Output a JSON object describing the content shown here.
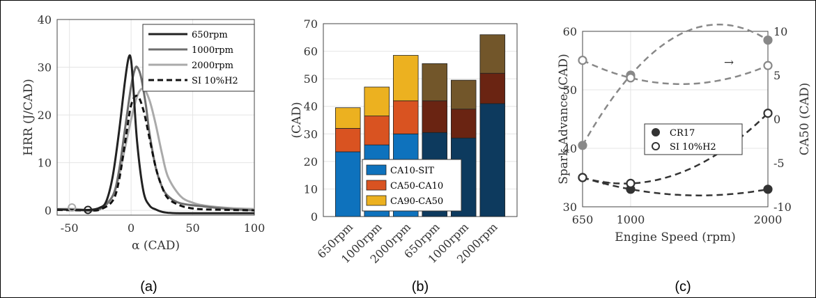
{
  "chart_data": [
    {
      "id": "a",
      "type": "line",
      "panel_label": "(a)",
      "xlabel": "α (CAD)",
      "ylabel": "HRR (J/CAD)",
      "xlim": [
        -60,
        100
      ],
      "ylim": [
        -1,
        40
      ],
      "xticks": [
        -50,
        0,
        50,
        100
      ],
      "yticks": [
        0,
        10,
        20,
        30,
        40
      ],
      "grid": true,
      "legend_position": "top-right",
      "series": [
        {
          "name": "650rpm",
          "color": "#222222",
          "dash": "",
          "x": [
            -60,
            -35,
            -25,
            -20,
            -15,
            -10,
            -5,
            -2,
            0,
            2,
            5,
            10,
            15,
            20,
            25,
            30,
            40,
            60,
            100
          ],
          "y": [
            0.2,
            0.1,
            0.6,
            2,
            7,
            16,
            27,
            32,
            31.5,
            25,
            14,
            4,
            1,
            0.2,
            -0.3,
            -0.5,
            -0.6,
            -0.6,
            -0.6
          ]
        },
        {
          "name": "1000rpm",
          "color": "#6e6e6e",
          "dash": "",
          "x": [
            -60,
            -35,
            -25,
            -15,
            -10,
            -5,
            0,
            3,
            5,
            8,
            12,
            15,
            20,
            25,
            30,
            40,
            60,
            80,
            100
          ],
          "y": [
            0.2,
            0,
            0.3,
            3,
            8,
            17,
            26,
            29.5,
            30,
            28,
            22,
            16,
            9,
            5,
            3,
            1.5,
            0.8,
            0.3,
            0
          ]
        },
        {
          "name": "2000rpm",
          "color": "#aaaaaa",
          "dash": "",
          "x": [
            -60,
            -45,
            -35,
            -25,
            -15,
            -10,
            -5,
            0,
            5,
            10,
            15,
            20,
            25,
            30,
            40,
            50,
            60,
            80,
            100
          ],
          "y": [
            0.3,
            0.3,
            0.1,
            0.5,
            3,
            7,
            13,
            19,
            24,
            25.5,
            23,
            18,
            12,
            7,
            3,
            1.6,
            1,
            0.5,
            0.3
          ]
        },
        {
          "name": "SI 10%H2",
          "color": "#111111",
          "dash": "8,5",
          "x": [
            -60,
            -35,
            -25,
            -15,
            -10,
            -5,
            0,
            5,
            10,
            15,
            20,
            25,
            30,
            40,
            50,
            60,
            80,
            100
          ],
          "y": [
            0.1,
            0,
            0.2,
            2,
            6,
            14,
            22,
            24,
            21,
            15,
            9,
            5,
            2.5,
            1,
            0.4,
            0.2,
            0.1,
            0
          ]
        }
      ],
      "markers": [
        {
          "x": -48,
          "y": 0.6,
          "color": "#aaaaaa"
        },
        {
          "x": -35,
          "y": 0.1,
          "color": "#222222"
        }
      ]
    },
    {
      "id": "b",
      "type": "bar",
      "panel_label": "(b)",
      "ylabel": "(CAD)",
      "ylim": [
        0,
        70
      ],
      "yticks": [
        0,
        10,
        20,
        30,
        40,
        50,
        60,
        70
      ],
      "grid": true,
      "legend_position": "bottom-center",
      "categories": [
        "650rpm",
        "1000rpm",
        "2000rpm",
        "650rpm",
        "1000rpm",
        "2000rpm"
      ],
      "series": [
        {
          "name": "CA10-SIT",
          "values": [
            23.5,
            26,
            30,
            30.5,
            28.5,
            41
          ],
          "colors": [
            "#0e72bd",
            "#0e72bd",
            "#0e72bd",
            "#0d3a5e",
            "#0d3a5e",
            "#0d3a5e"
          ]
        },
        {
          "name": "CA50-CA10",
          "values": [
            8.5,
            10.5,
            12,
            11.5,
            10.5,
            11
          ],
          "colors": [
            "#d95321",
            "#d95321",
            "#d95321",
            "#6a2412",
            "#6a2412",
            "#6a2412"
          ]
        },
        {
          "name": "CA90-CA50",
          "values": [
            7.5,
            10.5,
            16.5,
            13.5,
            10.5,
            14
          ],
          "colors": [
            "#ecb120",
            "#ecb120",
            "#ecb120",
            "#72562a",
            "#72562a",
            "#72562a"
          ]
        }
      ],
      "legend_colors": [
        "#0e72bd",
        "#d95321",
        "#ecb120"
      ]
    },
    {
      "id": "c",
      "type": "scatter",
      "panel_label": "(c)",
      "xlabel": "Engine Speed (rpm)",
      "ylabel_left": "Spark Advance (CAD)",
      "ylabel_right": "CA50 (CAD)",
      "xlim": [
        650,
        2000
      ],
      "ylim_left": [
        30,
        60
      ],
      "ylim_right": [
        -10,
        10
      ],
      "xticks": [
        650,
        1000,
        2000
      ],
      "yticks_left": [
        30,
        40,
        50,
        60
      ],
      "yticks_right": [
        -10,
        -5,
        0,
        5,
        10
      ],
      "grid": true,
      "legend_position": "center-right",
      "legend": [
        "CR17",
        "SI 10%H2"
      ],
      "series": [
        {
          "name": "CR17 spark advance",
          "axis": "left",
          "color": "#333333",
          "filled": true,
          "x": [
            650,
            1000,
            2000
          ],
          "y": [
            35,
            33,
            33
          ]
        },
        {
          "name": "SI 10%H2 spark advance",
          "axis": "left",
          "color": "#333333",
          "filled": false,
          "x": [
            650,
            1000,
            2000
          ],
          "y": [
            35,
            34,
            46
          ]
        },
        {
          "name": "CR17 CA50",
          "axis": "right",
          "color": "#888888",
          "filled": true,
          "x": [
            650,
            1000,
            2000
          ],
          "y": [
            -3,
            5,
            9
          ]
        },
        {
          "name": "SI 10%H2 CA50",
          "axis": "right",
          "color": "#888888",
          "filled": false,
          "x": [
            650,
            1000,
            2000
          ],
          "y": [
            6.7,
            4.7,
            6.1
          ]
        }
      ],
      "annotations": [
        "←",
        "→"
      ]
    }
  ]
}
